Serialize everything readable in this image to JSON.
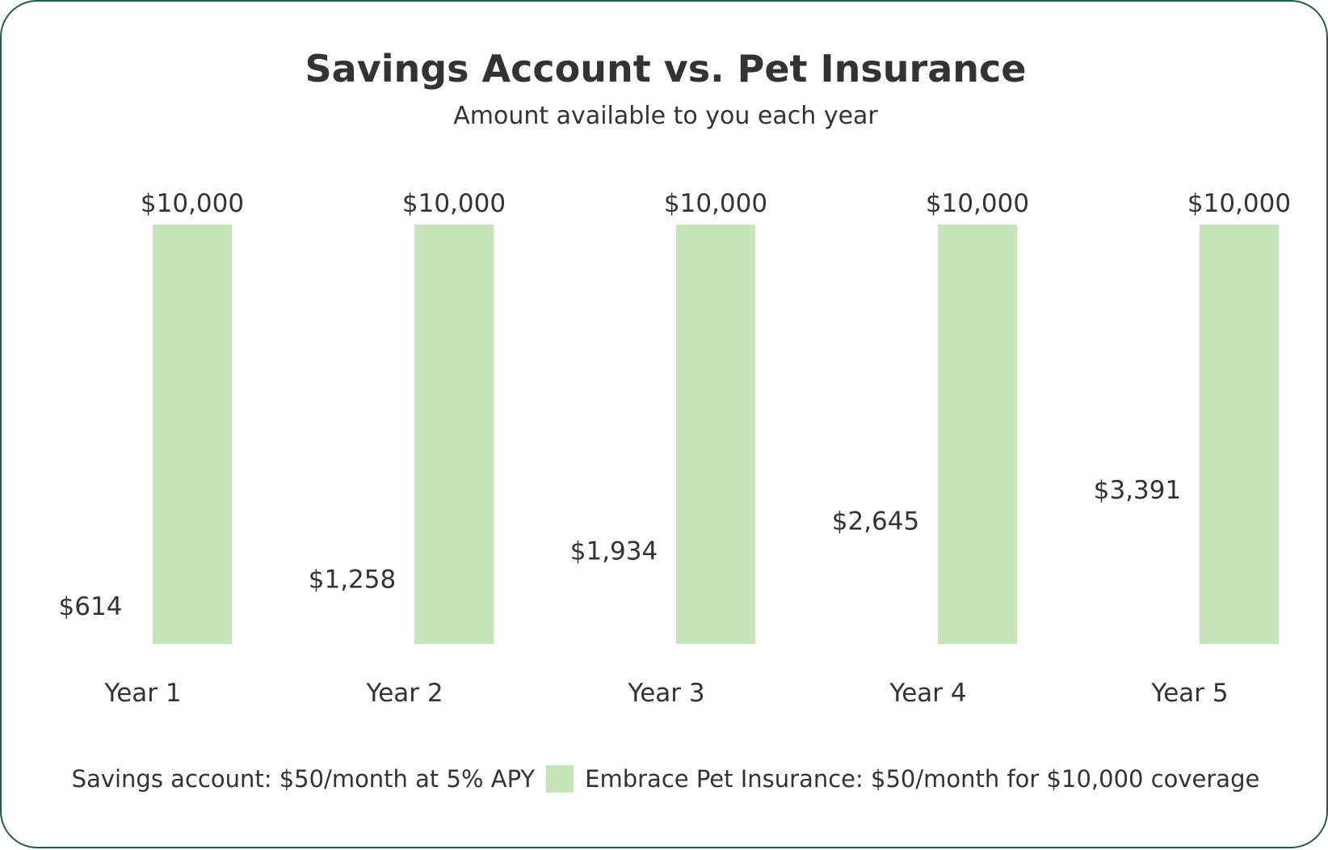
{
  "chart_data": {
    "type": "bar",
    "title": "Savings Account vs. Pet Insurance",
    "subtitle": "Amount available to you each year",
    "xlabel": "",
    "ylabel": "",
    "ylim": [
      0,
      10000
    ],
    "grid": false,
    "legend_position": "bottom",
    "categories": [
      "Year 1",
      "Year 2",
      "Year 3",
      "Year 4",
      "Year 5"
    ],
    "series": [
      {
        "name": "Savings account: $50/month at 5% APY",
        "values": [
          614,
          1258,
          1934,
          2645,
          3391
        ],
        "labels": [
          "$614",
          "$1,258",
          "$1,934",
          "$2,645",
          "$3,391"
        ],
        "color": "#ffffff"
      },
      {
        "name": "Embrace Pet Insurance: $50/month for $10,000 coverage",
        "values": [
          10000,
          10000,
          10000,
          10000,
          10000
        ],
        "labels": [
          "$10,000",
          "$10,000",
          "$10,000",
          "$10,000",
          "$10,000"
        ],
        "color": "#c5e4b7"
      }
    ]
  }
}
